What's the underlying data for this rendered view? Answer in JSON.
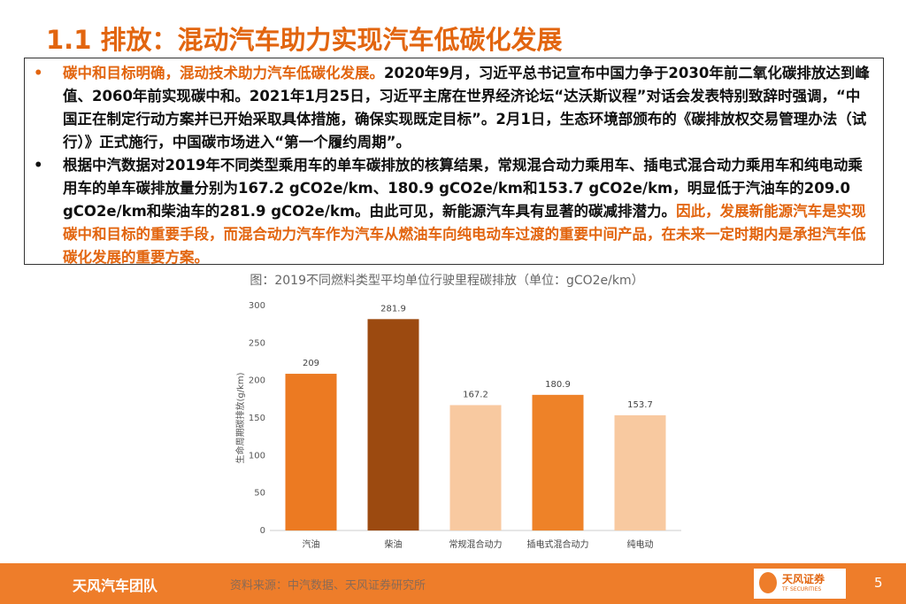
{
  "header": {
    "title": "1.1 排放：混动汽车助力实现汽车低碳化发展"
  },
  "bullets": [
    {
      "marker": "•",
      "segments": [
        {
          "text": "碳中和目标明确，混动技术助力汽车低碳化发展。",
          "color": "#e2650f"
        },
        {
          "text": "2020年9月，习近平总书记宣布中国力争于2030年前二氧化碳排放达到峰值、2060年前实现碳中和。2021年1月25日，习近平主席在世界经济论坛“达沃斯议程”对话会发表特别致辞时强调，“中国正在制定行动方案并已开始采取具体措施，确保实现既定目标”。2月1日，生态环境部颁布的《碳排放权交易管理办法（试行）》正式施行，中国碳市场进入“第一个履约周期”。",
          "color": "#111111"
        }
      ]
    },
    {
      "marker": "•",
      "segments": [
        {
          "text": "根据中汽数据对2019年不同类型乘用车的单车碳排放的核算结果，常规混合动力乘用车、插电式混合动力乘用车和纯电动乘用车的单车碳排放量分别为167.2 gCO2e/km、180.9 gCO2e/km和153.7 gCO2e/km，明显低于汽油车的209.0 gCO2e/km和柴油车的281.9 gCO2e/km。由此可见，新能源汽车具有显著的碳减排潜力。",
          "color": "#111111"
        },
        {
          "text": "因此，发展新能源汽车是实现碳中和目标的重要手段，而混合动力汽车作为汽车从燃油车向纯电动车过渡的重要中间产品，在未来一定时期内是承担汽车低碳化发展的重要方案。",
          "color": "#e2650f"
        }
      ]
    }
  ],
  "chart_data": {
    "type": "bar",
    "title": "图：2019不同燃料类型平均单位行驶里程碳排放（单位：gCO2e/km）",
    "y_label": "生命周期碳排放(g/km)",
    "categories": [
      "汽油",
      "柴油",
      "常规混合动力",
      "插电式混合动力",
      "纯电动"
    ],
    "values": [
      209,
      281.9,
      167.2,
      180.9,
      153.7
    ],
    "colors": [
      "#ec7a22",
      "#9c4a10",
      "#f8c9a0",
      "#ee8228",
      "#f8c9a0"
    ],
    "ylim": [
      0,
      300
    ],
    "yticks": [
      0,
      50,
      100,
      150,
      200,
      250,
      300
    ],
    "grid": false
  },
  "footer": {
    "team": "天风汽车团队",
    "source": "资料来源：中汽数据、天风证券研究所",
    "logo": "天风证券",
    "logo_sub": "TF SECURITIES",
    "page": "5"
  }
}
